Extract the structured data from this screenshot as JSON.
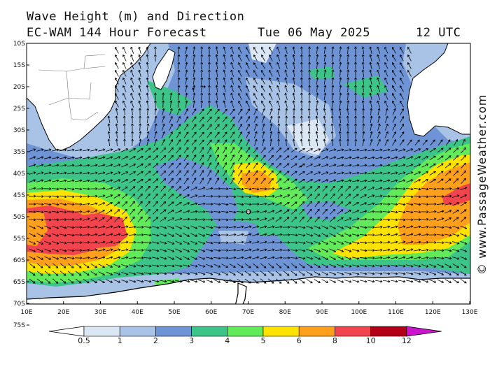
{
  "title": {
    "line1": "Wave Height (m) and Direction",
    "line2": "EC-WAM 144 Hour Forecast",
    "date": "Tue 06 May 2025",
    "time": "12 UTC"
  },
  "credit": "© www.PassageWeather.com",
  "latitude_labels": [
    "10S",
    "15S",
    "20S",
    "25S",
    "30S",
    "35S",
    "40S",
    "45S",
    "50S",
    "55S",
    "60S",
    "65S",
    "70S",
    "75S"
  ],
  "longitude_labels": [
    "10E",
    "20E",
    "30E",
    "40E",
    "50E",
    "60E",
    "70E",
    "80E",
    "90E",
    "100E",
    "110E",
    "120E",
    "130E"
  ],
  "legend": {
    "labels": [
      "0.5",
      "1",
      "2",
      "3",
      "4",
      "5",
      "6",
      "8",
      "10",
      "12"
    ],
    "colors": [
      "#ffffff",
      "#dce7f6",
      "#a9c3e6",
      "#6f94d6",
      "#3cc489",
      "#62ea5a",
      "#ffe300",
      "#ffa01c",
      "#f2444c",
      "#b20016",
      "#cc14cc"
    ]
  },
  "colors": {
    "land": "#ffffff",
    "background": "#ffffff",
    "arrow": "#000000",
    "border": "#000000"
  }
}
